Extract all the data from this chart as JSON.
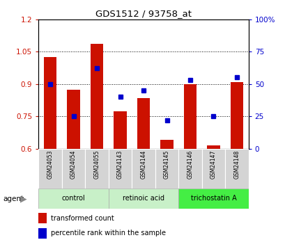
{
  "title": "GDS1512 / 93758_at",
  "samples": [
    "GSM24053",
    "GSM24054",
    "GSM24055",
    "GSM24143",
    "GSM24144",
    "GSM24145",
    "GSM24146",
    "GSM24147",
    "GSM24148"
  ],
  "group_defs": [
    {
      "label": "control",
      "start": 0,
      "end": 2,
      "color": "#c8f0c8"
    },
    {
      "label": "retinoic acid",
      "start": 3,
      "end": 5,
      "color": "#c8f0c8"
    },
    {
      "label": "trichostatin A",
      "start": 6,
      "end": 8,
      "color": "#44ee44"
    }
  ],
  "transformed_count": [
    1.025,
    0.875,
    1.085,
    0.775,
    0.835,
    0.64,
    0.9,
    0.615,
    0.91
  ],
  "percentile_rank": [
    50,
    25,
    62,
    40,
    45,
    22,
    53,
    25,
    55
  ],
  "bar_bottom": 0.6,
  "ylim_left": [
    0.6,
    1.2
  ],
  "ylim_right": [
    0,
    100
  ],
  "yticks_left": [
    0.6,
    0.75,
    0.9,
    1.05,
    1.2
  ],
  "yticks_right": [
    0,
    25,
    50,
    75,
    100
  ],
  "ytick_labels_right": [
    "0",
    "25",
    "50",
    "75",
    "100%"
  ],
  "bar_color": "#cc1100",
  "dot_color": "#0000cc",
  "tick_color_left": "#cc1100",
  "tick_color_right": "#0000cc",
  "legend": [
    "transformed count",
    "percentile rank within the sample"
  ],
  "sample_box_color": "#d4d4d4",
  "background_color": "#ffffff"
}
